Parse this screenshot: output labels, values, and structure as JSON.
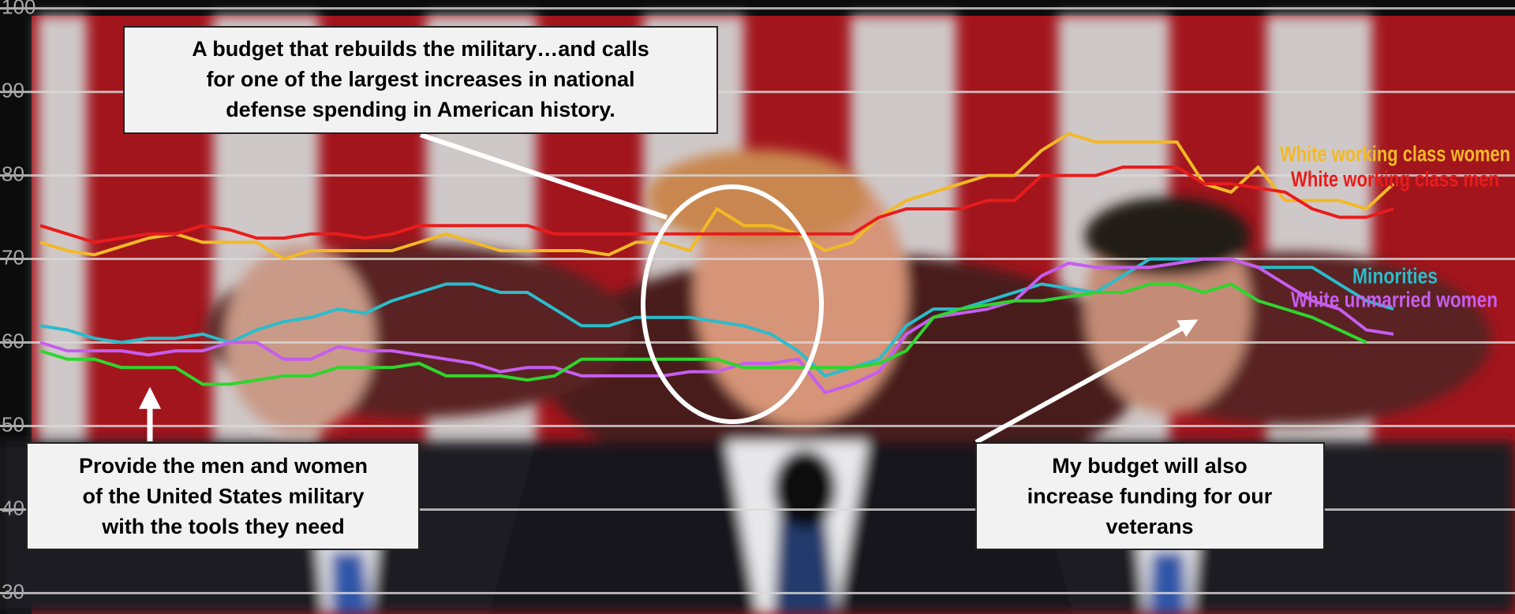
{
  "chart_data": {
    "type": "line",
    "ylim": [
      27.5,
      101
    ],
    "yticks": [
      30,
      40,
      50,
      60,
      70,
      80,
      90,
      100
    ],
    "grid": true,
    "series": [
      {
        "name": "White working class women",
        "color": "#f2b927",
        "values": [
          72,
          71,
          70.5,
          71.5,
          72.5,
          73,
          72,
          72,
          72,
          70,
          71,
          71,
          71,
          71,
          72,
          73,
          72,
          71,
          71,
          71,
          71,
          70.5,
          72,
          72,
          71,
          76,
          74,
          74,
          73,
          71,
          72,
          75,
          77,
          78,
          79,
          80,
          80,
          83,
          85,
          84,
          84,
          84,
          84,
          79,
          78,
          81,
          77,
          77,
          77,
          76,
          79
        ]
      },
      {
        "name": "White working class men",
        "color": "#e81c1c",
        "values": [
          74,
          73,
          72,
          72.5,
          73,
          73,
          74,
          73.5,
          72.5,
          72.5,
          73,
          73,
          72.5,
          73,
          74,
          74,
          74,
          74,
          74,
          73,
          73,
          73,
          73,
          73,
          73,
          73,
          73,
          73,
          73,
          73,
          73,
          75,
          76,
          76,
          76,
          77,
          77,
          80,
          80,
          80,
          81,
          81,
          81,
          79,
          79,
          78.5,
          78,
          76,
          75,
          75,
          76
        ]
      },
      {
        "name": "Minorities",
        "color": "#2bbccc",
        "values": [
          62,
          61.5,
          60.5,
          60,
          60.5,
          60.5,
          61,
          60,
          61.5,
          62.5,
          63,
          64,
          63.5,
          65,
          66,
          67,
          67,
          66,
          66,
          64,
          62,
          62,
          63,
          63,
          63,
          62.5,
          62,
          61,
          59,
          56,
          57,
          58,
          62,
          64,
          64,
          65,
          66,
          67,
          66.5,
          66,
          68,
          70,
          70,
          70,
          70,
          69,
          69,
          69,
          67,
          65,
          64
        ]
      },
      {
        "name": "White unmarried women",
        "color": "#c65df0",
        "values": [
          60,
          59,
          59,
          59,
          58.5,
          59,
          59,
          60,
          60,
          58,
          58,
          59.5,
          59,
          59,
          58.5,
          58,
          57.5,
          56.5,
          57,
          57,
          56,
          56,
          56,
          56,
          56.5,
          56.5,
          57.5,
          57.5,
          58,
          54,
          55,
          56.5,
          61,
          63,
          63.5,
          64,
          65,
          68,
          69.5,
          69,
          69,
          69,
          69.5,
          70,
          70,
          69,
          67,
          65,
          64,
          61.5,
          61
        ]
      },
      {
        "color": "#2ed62e",
        "values": [
          59,
          58,
          58,
          57,
          57,
          57,
          55,
          55,
          55.5,
          56,
          56,
          57,
          57,
          57,
          57.5,
          56,
          56,
          56,
          55.5,
          56,
          58,
          58,
          58,
          58,
          58,
          58,
          57,
          57,
          57,
          57,
          57,
          57.5,
          59,
          63,
          64,
          64.5,
          65,
          65,
          65.5,
          66,
          66,
          67,
          67,
          66,
          67,
          65,
          64,
          63,
          61.5,
          60,
          null
        ]
      }
    ],
    "annotations": [
      {
        "lines": [
          "A budget that rebuilds the military…and calls",
          "for one of the largest increases in national",
          "defense spending in American history."
        ]
      },
      {
        "lines": [
          "Provide the men and women",
          "of the United States military",
          "with the tools they need"
        ]
      },
      {
        "lines": [
          "My budget will also",
          "increase funding for our",
          "veterans"
        ]
      }
    ]
  }
}
